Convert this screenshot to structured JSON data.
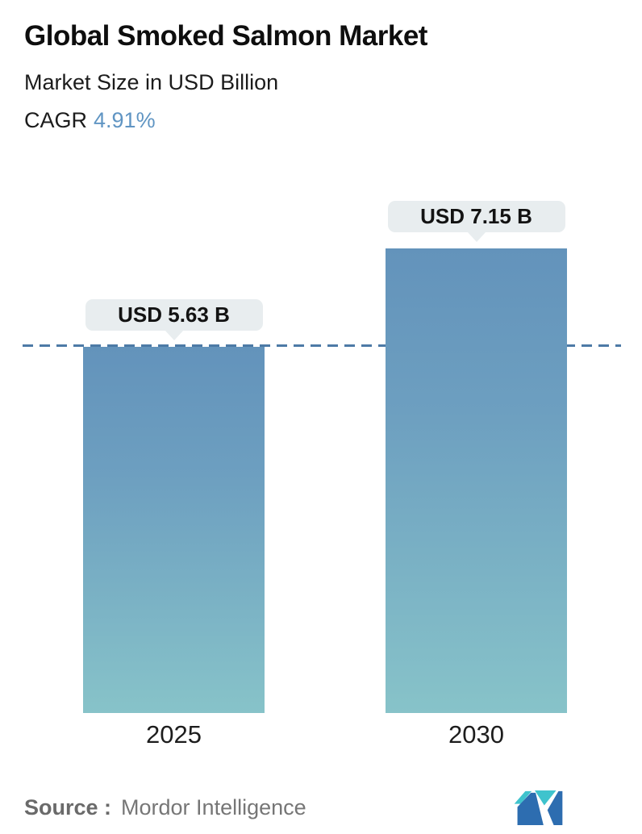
{
  "header": {
    "title": "Global Smoked Salmon Market",
    "subtitle": "Market Size in USD Billion",
    "cagr_label": "CAGR",
    "cagr_value": "4.91%"
  },
  "chart_data": {
    "type": "bar",
    "title": "Global Smoked Salmon Market",
    "subtitle": "Market Size in USD Billion",
    "unit": "USD Billion",
    "cagr_percent": 4.91,
    "categories": [
      "2025",
      "2030"
    ],
    "values": [
      5.63,
      7.15
    ],
    "value_labels": [
      "USD 5.63 B",
      "USD 7.15 B"
    ],
    "ylim": [
      0,
      7.15
    ],
    "grid": false,
    "legend": false,
    "reference_line": {
      "style": "dashed",
      "at_value": 5.63,
      "color": "#4d7aa6"
    },
    "bar_gradient": {
      "top": "#6393bb",
      "bottom": "#87c3c9"
    }
  },
  "footer": {
    "source_label": "Source :",
    "source_value": "Mordor Intelligence",
    "logo_name": "mordor-intelligence-logo",
    "logo_colors": {
      "blue": "#2d6db0",
      "teal": "#3fc3cd"
    }
  },
  "colors": {
    "background": "#ffffff",
    "accent_blue": "#6095c3",
    "tooltip_bg": "#e8edef",
    "text_dark": "#0e0e0e",
    "text_gray": "#767676"
  }
}
